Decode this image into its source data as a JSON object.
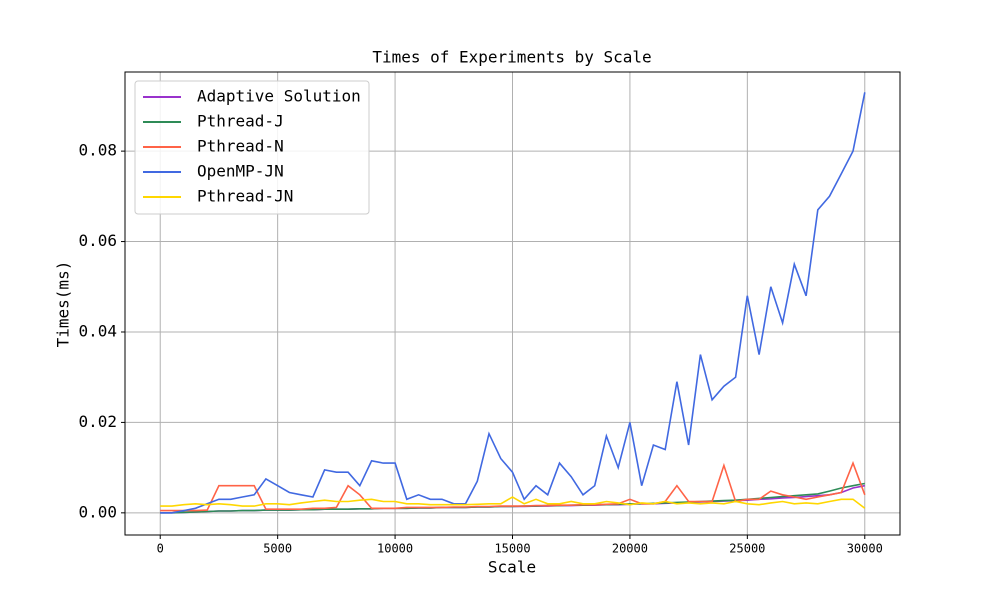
{
  "chart_data": {
    "type": "line",
    "title": "Times of Experiments by Scale",
    "xlabel": "Scale",
    "ylabel": "Times(ms)",
    "x": [
      0,
      500,
      1000,
      1500,
      2000,
      2500,
      3000,
      3500,
      4000,
      4500,
      5000,
      5500,
      6000,
      6500,
      7000,
      7500,
      8000,
      8500,
      9000,
      9500,
      10000,
      10500,
      11000,
      11500,
      12000,
      12500,
      13000,
      13500,
      14000,
      14500,
      15000,
      15500,
      16000,
      16500,
      17000,
      17500,
      18000,
      18500,
      19000,
      19500,
      20000,
      20500,
      21000,
      21500,
      22000,
      22500,
      23000,
      23500,
      24000,
      24500,
      25000,
      25500,
      26000,
      26500,
      27000,
      27500,
      28000,
      28500,
      29000,
      29500,
      30000
    ],
    "series": [
      {
        "name": "Adaptive Solution",
        "color": "#9932cc",
        "values": [
          0,
          0,
          0.0001,
          0.0002,
          0.0003,
          0.0004,
          0.0004,
          0.0005,
          0.0005,
          0.0006,
          0.0006,
          0.0006,
          0.0007,
          0.0007,
          0.0008,
          0.0008,
          0.0008,
          0.0009,
          0.0009,
          0.001,
          0.001,
          0.001,
          0.0011,
          0.0011,
          0.0012,
          0.0012,
          0.0012,
          0.0013,
          0.0013,
          0.0014,
          0.0014,
          0.0014,
          0.0015,
          0.0015,
          0.0016,
          0.0016,
          0.0017,
          0.0017,
          0.0018,
          0.0018,
          0.0019,
          0.002,
          0.002,
          0.0021,
          0.0022,
          0.0023,
          0.0024,
          0.0025,
          0.0026,
          0.0027,
          0.0028,
          0.003,
          0.0031,
          0.0033,
          0.0034,
          0.0036,
          0.0038,
          0.004,
          0.0045,
          0.0055,
          0.006
        ]
      },
      {
        "name": "Pthread-J",
        "color": "#2e8b57",
        "values": [
          0,
          0,
          0.0001,
          0.0002,
          0.0003,
          0.0004,
          0.0004,
          0.0005,
          0.0005,
          0.0006,
          0.0006,
          0.0006,
          0.0007,
          0.0007,
          0.0008,
          0.0008,
          0.0008,
          0.0009,
          0.0009,
          0.001,
          0.001,
          0.001,
          0.0011,
          0.0011,
          0.0012,
          0.0012,
          0.0012,
          0.0013,
          0.0013,
          0.0014,
          0.0014,
          0.0015,
          0.0015,
          0.0016,
          0.0016,
          0.0017,
          0.0017,
          0.0018,
          0.0018,
          0.0019,
          0.002,
          0.002,
          0.0021,
          0.0022,
          0.0023,
          0.0024,
          0.0025,
          0.0026,
          0.0027,
          0.0028,
          0.003,
          0.0032,
          0.0034,
          0.0036,
          0.0038,
          0.004,
          0.0042,
          0.0048,
          0.0055,
          0.006,
          0.0065
        ]
      },
      {
        "name": "Pthread-N",
        "color": "#ff6347",
        "values": [
          0.0005,
          0.0005,
          0.0005,
          0.0005,
          0.0006,
          0.006,
          0.006,
          0.006,
          0.006,
          0.0008,
          0.0008,
          0.0008,
          0.0008,
          0.001,
          0.001,
          0.0012,
          0.006,
          0.004,
          0.001,
          0.001,
          0.001,
          0.0012,
          0.0012,
          0.0012,
          0.0012,
          0.0013,
          0.0013,
          0.0014,
          0.0014,
          0.0015,
          0.0015,
          0.0015,
          0.0016,
          0.0016,
          0.0017,
          0.0017,
          0.0018,
          0.0018,
          0.0019,
          0.002,
          0.003,
          0.002,
          0.002,
          0.0025,
          0.006,
          0.0025,
          0.0025,
          0.0025,
          0.0105,
          0.0025,
          0.003,
          0.003,
          0.0048,
          0.004,
          0.0035,
          0.003,
          0.0035,
          0.004,
          0.0045,
          0.011,
          0.004
        ]
      },
      {
        "name": "OpenMP-JN",
        "color": "#4169e1",
        "values": [
          0,
          0,
          0.0005,
          0.001,
          0.002,
          0.003,
          0.003,
          0.0035,
          0.004,
          0.0075,
          0.006,
          0.0045,
          0.004,
          0.0035,
          0.0095,
          0.009,
          0.009,
          0.006,
          0.0115,
          0.011,
          0.011,
          0.003,
          0.004,
          0.003,
          0.003,
          0.002,
          0.002,
          0.007,
          0.0175,
          0.012,
          0.009,
          0.003,
          0.006,
          0.004,
          0.011,
          0.008,
          0.004,
          0.006,
          0.017,
          0.01,
          0.02,
          0.006,
          0.015,
          0.014,
          0.029,
          0.015,
          0.035,
          0.025,
          0.028,
          0.03,
          0.048,
          0.035,
          0.05,
          0.042,
          0.055,
          0.048,
          0.067,
          0.07,
          0.075,
          0.08,
          0.093
        ]
      },
      {
        "name": "Pthread-JN",
        "color": "#ffd700",
        "values": [
          0.0015,
          0.0015,
          0.0018,
          0.002,
          0.0018,
          0.002,
          0.0018,
          0.0015,
          0.0015,
          0.002,
          0.002,
          0.0018,
          0.0022,
          0.0025,
          0.0028,
          0.0025,
          0.0025,
          0.0028,
          0.003,
          0.0025,
          0.0025,
          0.002,
          0.002,
          0.0018,
          0.0018,
          0.0018,
          0.0018,
          0.0019,
          0.002,
          0.002,
          0.0035,
          0.002,
          0.003,
          0.002,
          0.002,
          0.0025,
          0.002,
          0.002,
          0.0025,
          0.0022,
          0.0018,
          0.0022,
          0.002,
          0.0025,
          0.002,
          0.0022,
          0.002,
          0.0022,
          0.002,
          0.0025,
          0.002,
          0.0018,
          0.0022,
          0.0025,
          0.002,
          0.0022,
          0.002,
          0.0025,
          0.003,
          0.003,
          0.001
        ]
      }
    ],
    "xlim": [
      -1500,
      31500
    ],
    "ylim": [
      -0.0049,
      0.0975
    ],
    "xticks": [
      0,
      5000,
      10000,
      15000,
      20000,
      25000,
      30000
    ],
    "yticks": [
      {
        "value": 0,
        "label": "0.00"
      },
      {
        "value": 0.02,
        "label": "0.02"
      },
      {
        "value": 0.04,
        "label": "0.04"
      },
      {
        "value": 0.06,
        "label": "0.06"
      },
      {
        "value": 0.08,
        "label": "0.08"
      }
    ],
    "grid": true,
    "legend": "upper-left"
  }
}
